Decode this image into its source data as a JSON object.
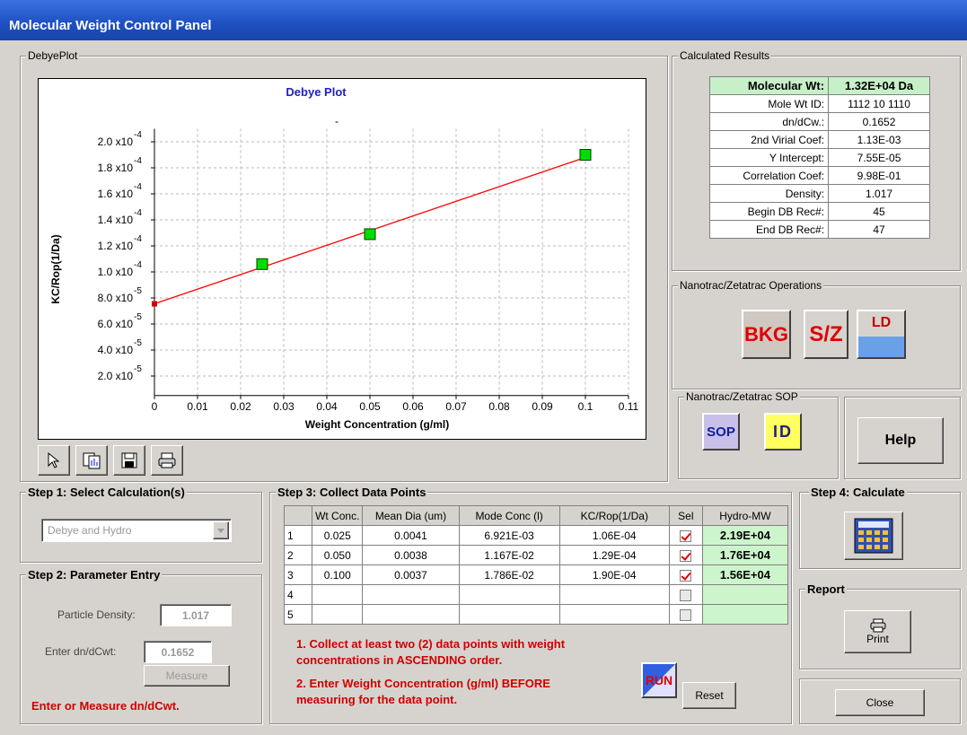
{
  "window": {
    "title": "Molecular Weight Control Panel"
  },
  "debye_panel": {
    "label": "DebyePlot"
  },
  "chart_data": {
    "type": "line",
    "title": "Debye Plot",
    "subtitle": "-",
    "x_label": "Weight Concentration (g/ml)",
    "y_label": "KC/Rop(1/Da)",
    "xlim": [
      0,
      0.11
    ],
    "xticks": [
      0,
      0.01,
      0.02,
      0.03,
      0.04,
      0.05,
      0.06,
      0.07,
      0.08,
      0.09,
      0.1,
      0.11
    ],
    "ylim": [
      5e-06,
      0.00021
    ],
    "yticks": [
      {
        "value": 2e-05,
        "label": "2.0 x10",
        "exponent": "-5"
      },
      {
        "value": 4e-05,
        "label": "4.0 x10",
        "exponent": "-5"
      },
      {
        "value": 6e-05,
        "label": "6.0 x10",
        "exponent": "-5"
      },
      {
        "value": 8e-05,
        "label": "8.0 x10",
        "exponent": "-5"
      },
      {
        "value": 0.0001,
        "label": "1.0 x10",
        "exponent": "-4"
      },
      {
        "value": 0.00012,
        "label": "1.2 x10",
        "exponent": "-4"
      },
      {
        "value": 0.00014,
        "label": "1.4 x10",
        "exponent": "-4"
      },
      {
        "value": 0.00016,
        "label": "1.6 x10",
        "exponent": "-4"
      },
      {
        "value": 0.00018,
        "label": "1.8 x10",
        "exponent": "-4"
      },
      {
        "value": 0.0002,
        "label": "2.0 x10",
        "exponent": "-4"
      }
    ],
    "grid": true,
    "series": [
      {
        "color": "#ff0000",
        "marker": "none",
        "x": [
          0,
          0.1
        ],
        "values": [
          7.55e-05,
          0.000188
        ]
      },
      {
        "color": "#00dd00",
        "marker": "square",
        "x": [
          0.025,
          0.05,
          0.1
        ],
        "values": [
          0.000106,
          0.000129,
          0.00019
        ]
      },
      {
        "color": "#cc0000",
        "marker": "small-square",
        "x": [
          0
        ],
        "values": [
          7.55e-05
        ]
      }
    ]
  },
  "results": {
    "label": "Calculated Results",
    "rows": [
      [
        "Molecular Wt:",
        "1.32E+04 Da"
      ],
      [
        "Mole Wt ID:",
        "1112 10 1110"
      ],
      [
        "dn/dCw.:",
        "0.1652"
      ],
      [
        "2nd Virial Coef:",
        "1.13E-03"
      ],
      [
        "Y Intercept:",
        "7.55E-05"
      ],
      [
        "Correlation Coef:",
        "9.98E-01"
      ],
      [
        "Density:",
        "1.017"
      ],
      [
        "Begin DB Rec#:",
        "45"
      ],
      [
        "End DB Rec#:",
        "47"
      ]
    ]
  },
  "operations": {
    "label": "Nanotrac/Zetatrac Operations",
    "buttons": [
      "BKG",
      "S/Z",
      "LD"
    ]
  },
  "sop": {
    "label": "Nanotrac/Zetatrac SOP",
    "buttons": [
      "SOP",
      "ID"
    ]
  },
  "help": "Help",
  "step1": {
    "label": "Step 1: Select Calculation(s)",
    "selection": "Debye and Hydro"
  },
  "step2": {
    "label": "Step 2: Parameter Entry",
    "density_label": "Particle Density:",
    "density": "1.017",
    "dndc_label": "Enter dn/dCwt:",
    "dndc": "0.1652",
    "measure": "Measure",
    "hint": "Enter or Measure dn/dCwt."
  },
  "step3": {
    "label": "Step 3: Collect Data Points",
    "columns": [
      "Wt Conc.",
      "Mean Dia (um)",
      "Mode Conc (l)",
      "KC/Rop(1/Da)",
      "Sel",
      "Hydro-MW"
    ],
    "rows": [
      {
        "index": "1",
        "cells": [
          "0.025",
          "0.0041",
          "6.921E-03",
          "1.06E-04"
        ],
        "selected": true,
        "hydro_mw": "2.19E+04"
      },
      {
        "index": "2",
        "cells": [
          "0.050",
          "0.0038",
          "1.167E-02",
          "1.29E-04"
        ],
        "selected": true,
        "hydro_mw": "1.76E+04"
      },
      {
        "index": "3",
        "cells": [
          "0.100",
          "0.0037",
          "1.786E-02",
          "1.90E-04"
        ],
        "selected": true,
        "hydro_mw": "1.56E+04"
      },
      {
        "index": "4",
        "selected": false
      },
      {
        "index": "5",
        "selected": false
      }
    ],
    "notes": [
      "1. Collect at least two (2) data points with weight",
      "concentrations in ASCENDING order.",
      "2. Enter Weight Concentration (g/ml) BEFORE",
      "measuring for the data point."
    ],
    "run": "RUN",
    "reset": "Reset"
  },
  "step4": {
    "label": "Step 4: Calculate"
  },
  "report": {
    "label": "Report",
    "button": "Print"
  },
  "close": "Close"
}
